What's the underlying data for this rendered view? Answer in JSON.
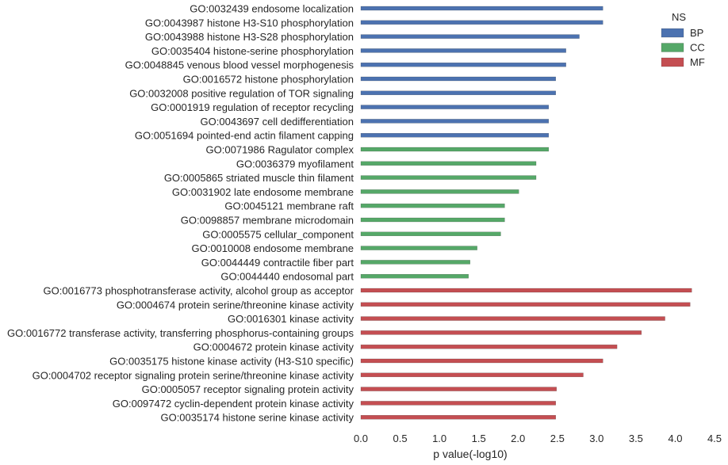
{
  "chart_data": {
    "type": "bar",
    "orientation": "horizontal",
    "xlabel": "p value(-log10)",
    "ylabel": "",
    "xlim": [
      0,
      4.5
    ],
    "xticks": [
      "0.0",
      "0.5",
      "1.0",
      "1.5",
      "2.0",
      "2.5",
      "3.0",
      "3.5",
      "4.0",
      "4.5"
    ],
    "grid": false,
    "legend": {
      "title": "NS",
      "placement": "top-right",
      "entries": [
        {
          "label": "BP",
          "color": "#4c72b0"
        },
        {
          "label": "CC",
          "color": "#55a868"
        },
        {
          "label": "MF",
          "color": "#c44e52"
        }
      ]
    },
    "categories": [
      "GO:0032439 endosome localization",
      "GO:0043987 histone H3-S10 phosphorylation",
      "GO:0043988 histone H3-S28 phosphorylation",
      "GO:0035404 histone-serine phosphorylation",
      "GO:0048845 venous blood vessel morphogenesis",
      "GO:0016572 histone phosphorylation",
      "GO:0032008 positive regulation of TOR signaling",
      "GO:0001919 regulation of receptor recycling",
      "GO:0043697 cell dedifferentiation",
      "GO:0051694 pointed-end actin filament capping",
      "GO:0071986 Ragulator complex",
      "GO:0036379 myofilament",
      "GO:0005865 striated muscle thin filament",
      "GO:0031902 late endosome membrane",
      "GO:0045121 membrane raft",
      "GO:0098857 membrane microdomain",
      "GO:0005575 cellular_component",
      "GO:0010008 endosome membrane",
      "GO:0044449 contractile fiber part",
      "GO:0044440 endosomal part",
      "GO:0016773 phosphotransferase activity, alcohol group as acceptor",
      "GO:0004674 protein serine/threonine kinase activity",
      "GO:0016301 kinase activity",
      "GO:0016772 transferase activity, transferring phosphorus-containing groups",
      "GO:0004672 protein kinase activity",
      "GO:0035175 histone kinase activity (H3-S10 specific)",
      "GO:0004702 receptor signaling protein serine/threonine kinase activity",
      "GO:0005057 receptor signaling protein activity",
      "GO:0097472 cyclin-dependent protein kinase activity",
      "GO:0035174 histone serine kinase activity"
    ],
    "values": [
      3.08,
      3.08,
      2.78,
      2.61,
      2.61,
      2.48,
      2.48,
      2.39,
      2.39,
      2.39,
      2.39,
      2.23,
      2.23,
      2.01,
      1.83,
      1.83,
      1.78,
      1.48,
      1.39,
      1.37,
      4.21,
      4.19,
      3.87,
      3.57,
      3.26,
      3.08,
      2.83,
      2.49,
      2.48,
      2.48
    ],
    "groups": [
      "BP",
      "BP",
      "BP",
      "BP",
      "BP",
      "BP",
      "BP",
      "BP",
      "BP",
      "BP",
      "CC",
      "CC",
      "CC",
      "CC",
      "CC",
      "CC",
      "CC",
      "CC",
      "CC",
      "CC",
      "MF",
      "MF",
      "MF",
      "MF",
      "MF",
      "MF",
      "MF",
      "MF",
      "MF",
      "MF"
    ]
  }
}
